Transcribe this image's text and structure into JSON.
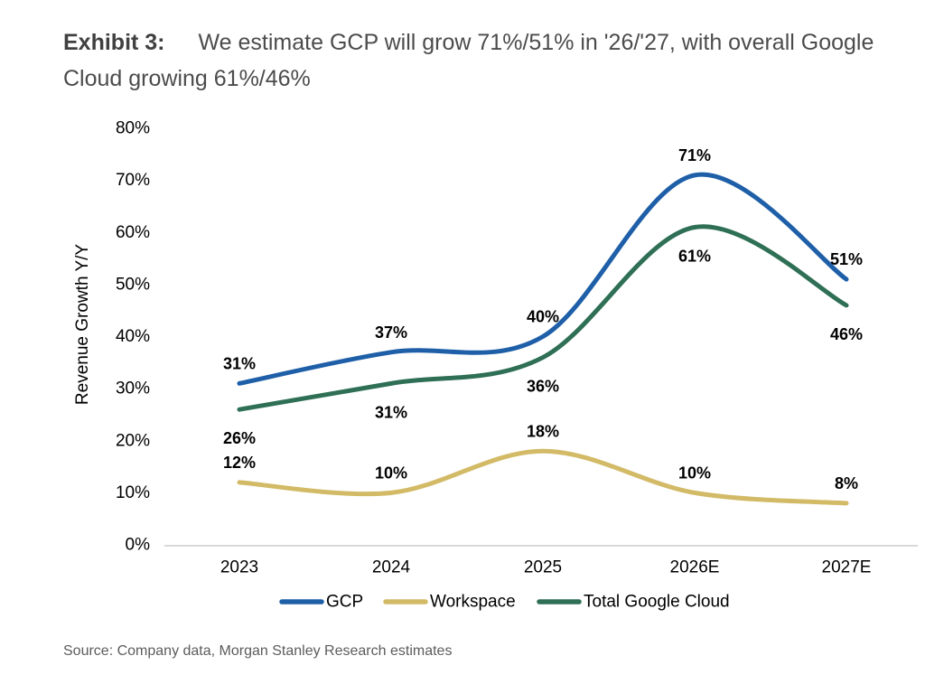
{
  "exhibit": {
    "label": "Exhibit 3:",
    "title": "We estimate GCP will grow 71%/51% in '26/'27, with overall Google Cloud growing 61%/46%"
  },
  "source": "Source: Company data, Morgan Stanley Research estimates",
  "chart_data": {
    "type": "line",
    "title": "",
    "xlabel": "",
    "ylabel": "Revenue Growth Y/Y",
    "categories": [
      "2023",
      "2024",
      "2025",
      "2026E",
      "2027E"
    ],
    "series": [
      {
        "name": "GCP",
        "color": "#1e5fa8",
        "values": [
          31,
          37,
          40,
          71,
          51
        ],
        "label_position": "above"
      },
      {
        "name": "Workspace",
        "color": "#d2ba66",
        "values": [
          12,
          10,
          18,
          10,
          8
        ],
        "label_position": "above"
      },
      {
        "name": "Total Google Cloud",
        "color": "#2e6f55",
        "values": [
          26,
          31,
          36,
          61,
          46
        ],
        "label_position": "below"
      }
    ],
    "ylim": [
      0,
      80
    ],
    "ytick_step": 10,
    "tick_suffix": "%",
    "value_label_suffix": "%",
    "grid": false,
    "smooth": true,
    "legend_position": "bottom",
    "axis_line_color": "#d9d9d9",
    "tick_color": "#000000",
    "value_label_color": "#000000"
  }
}
